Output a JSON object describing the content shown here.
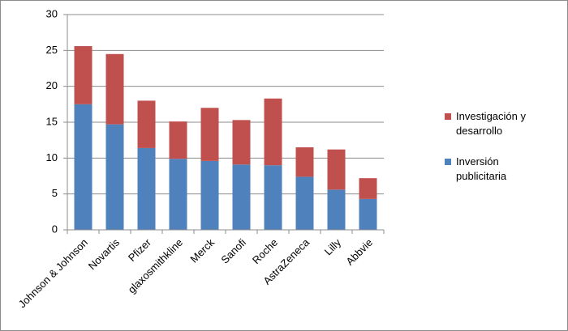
{
  "chart_data": {
    "type": "stacked_bar",
    "categories": [
      "Johnson & Johnson",
      "Novartis",
      "Pfizer",
      "glaxosmithkline",
      "Merck",
      "Sanofi",
      "Roche",
      "AstraZeneca",
      "Lilly",
      "Abbvie"
    ],
    "series": [
      {
        "name": "Inversión publicitaria",
        "color": "#4f81bd",
        "values": [
          17.5,
          14.7,
          11.4,
          9.9,
          9.6,
          9.1,
          9.0,
          7.4,
          5.6,
          4.3
        ]
      },
      {
        "name": "Investigación y desarrollo",
        "color": "#c0504d",
        "values": [
          8.1,
          9.8,
          6.6,
          5.2,
          7.4,
          6.2,
          9.3,
          4.1,
          5.6,
          2.9
        ]
      }
    ],
    "ylim": [
      0,
      30
    ],
    "yticks": [
      0,
      5,
      10,
      15,
      20,
      25,
      30
    ],
    "grid": true,
    "legend": "right"
  }
}
